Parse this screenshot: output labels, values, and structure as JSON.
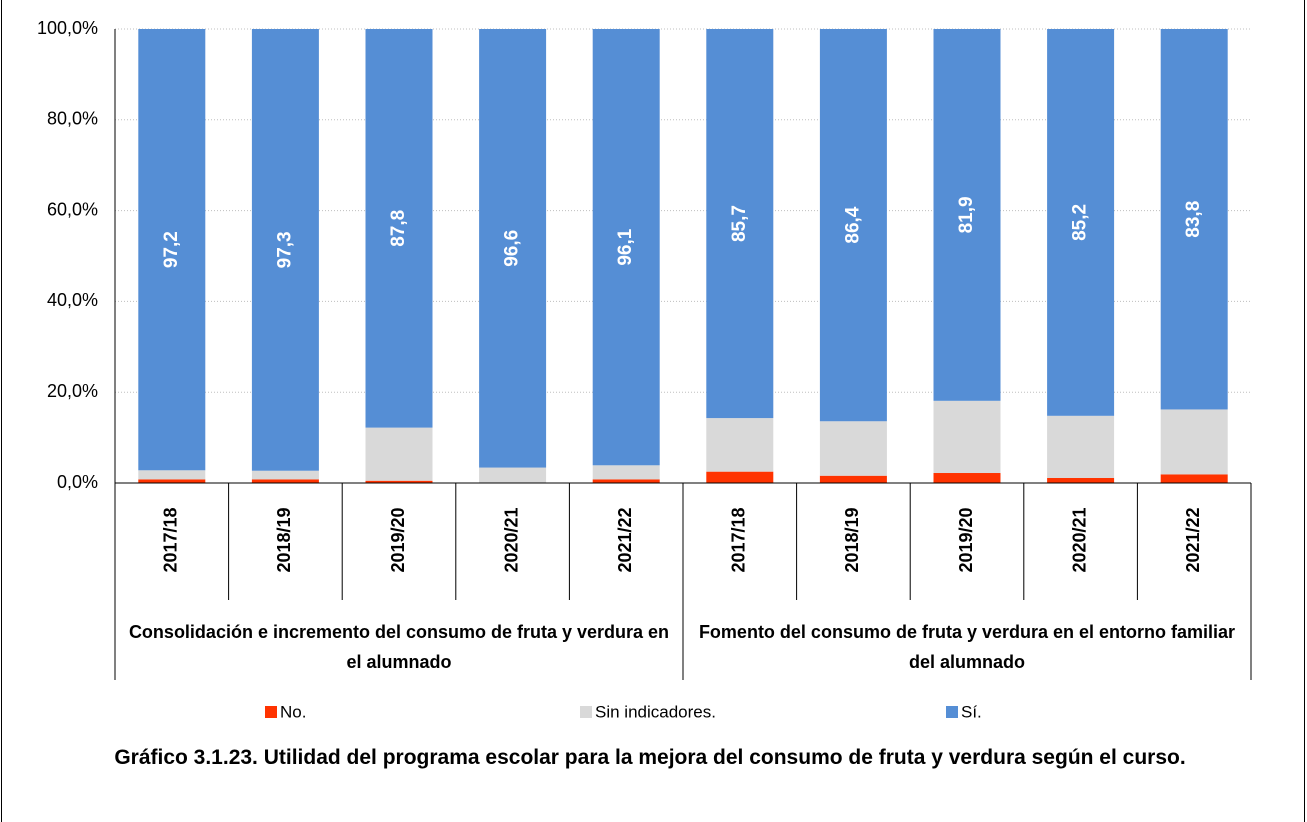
{
  "chart_data": {
    "type": "stacked_bar",
    "title": "Gráfico 3.1.23. Utilidad del programa escolar para la mejora del consumo de fruta y verdura según el curso.",
    "groups": [
      {
        "label": "Consolidación e incremento del consumo de fruta y verdura en el alumnado",
        "categories": [
          "2017/18",
          "2018/19",
          "2019/20",
          "2020/21",
          "2021/22"
        ]
      },
      {
        "label": "Fomento del consumo de fruta y verdura en el entorno familiar del alumnado",
        "categories": [
          "2017/18",
          "2018/19",
          "2019/20",
          "2020/21",
          "2021/22"
        ]
      }
    ],
    "series": [
      {
        "name": "No.",
        "color": "#ff3300",
        "values": [
          0.8,
          0.8,
          0.5,
          0.1,
          0.8,
          2.5,
          1.6,
          2.2,
          1.1,
          1.9
        ]
      },
      {
        "name": "Sin indicadores.",
        "color": "#d9d9d9",
        "values": [
          2.0,
          1.9,
          11.7,
          3.3,
          3.1,
          11.8,
          12.0,
          15.9,
          13.7,
          14.3
        ]
      },
      {
        "name": "Sí.",
        "color": "#558ed5",
        "values": [
          97.2,
          97.3,
          87.8,
          96.6,
          96.1,
          85.7,
          86.4,
          81.9,
          85.2,
          83.8
        ],
        "value_labels": [
          "97,2",
          "97,3",
          "87,8",
          "96,6",
          "96,1",
          "85,7",
          "86,4",
          "81,9",
          "85,2",
          "83,8"
        ]
      }
    ],
    "ylim": [
      0,
      100
    ],
    "yticks": [
      {
        "value": 0,
        "label": "0,0%"
      },
      {
        "value": 20,
        "label": "20,0%"
      },
      {
        "value": 40,
        "label": "40,0%"
      },
      {
        "value": 60,
        "label": "60,0%"
      },
      {
        "value": 80,
        "label": "80,0%"
      },
      {
        "value": 100,
        "label": "100,0%"
      }
    ],
    "grid": true,
    "legend": "bottom"
  }
}
